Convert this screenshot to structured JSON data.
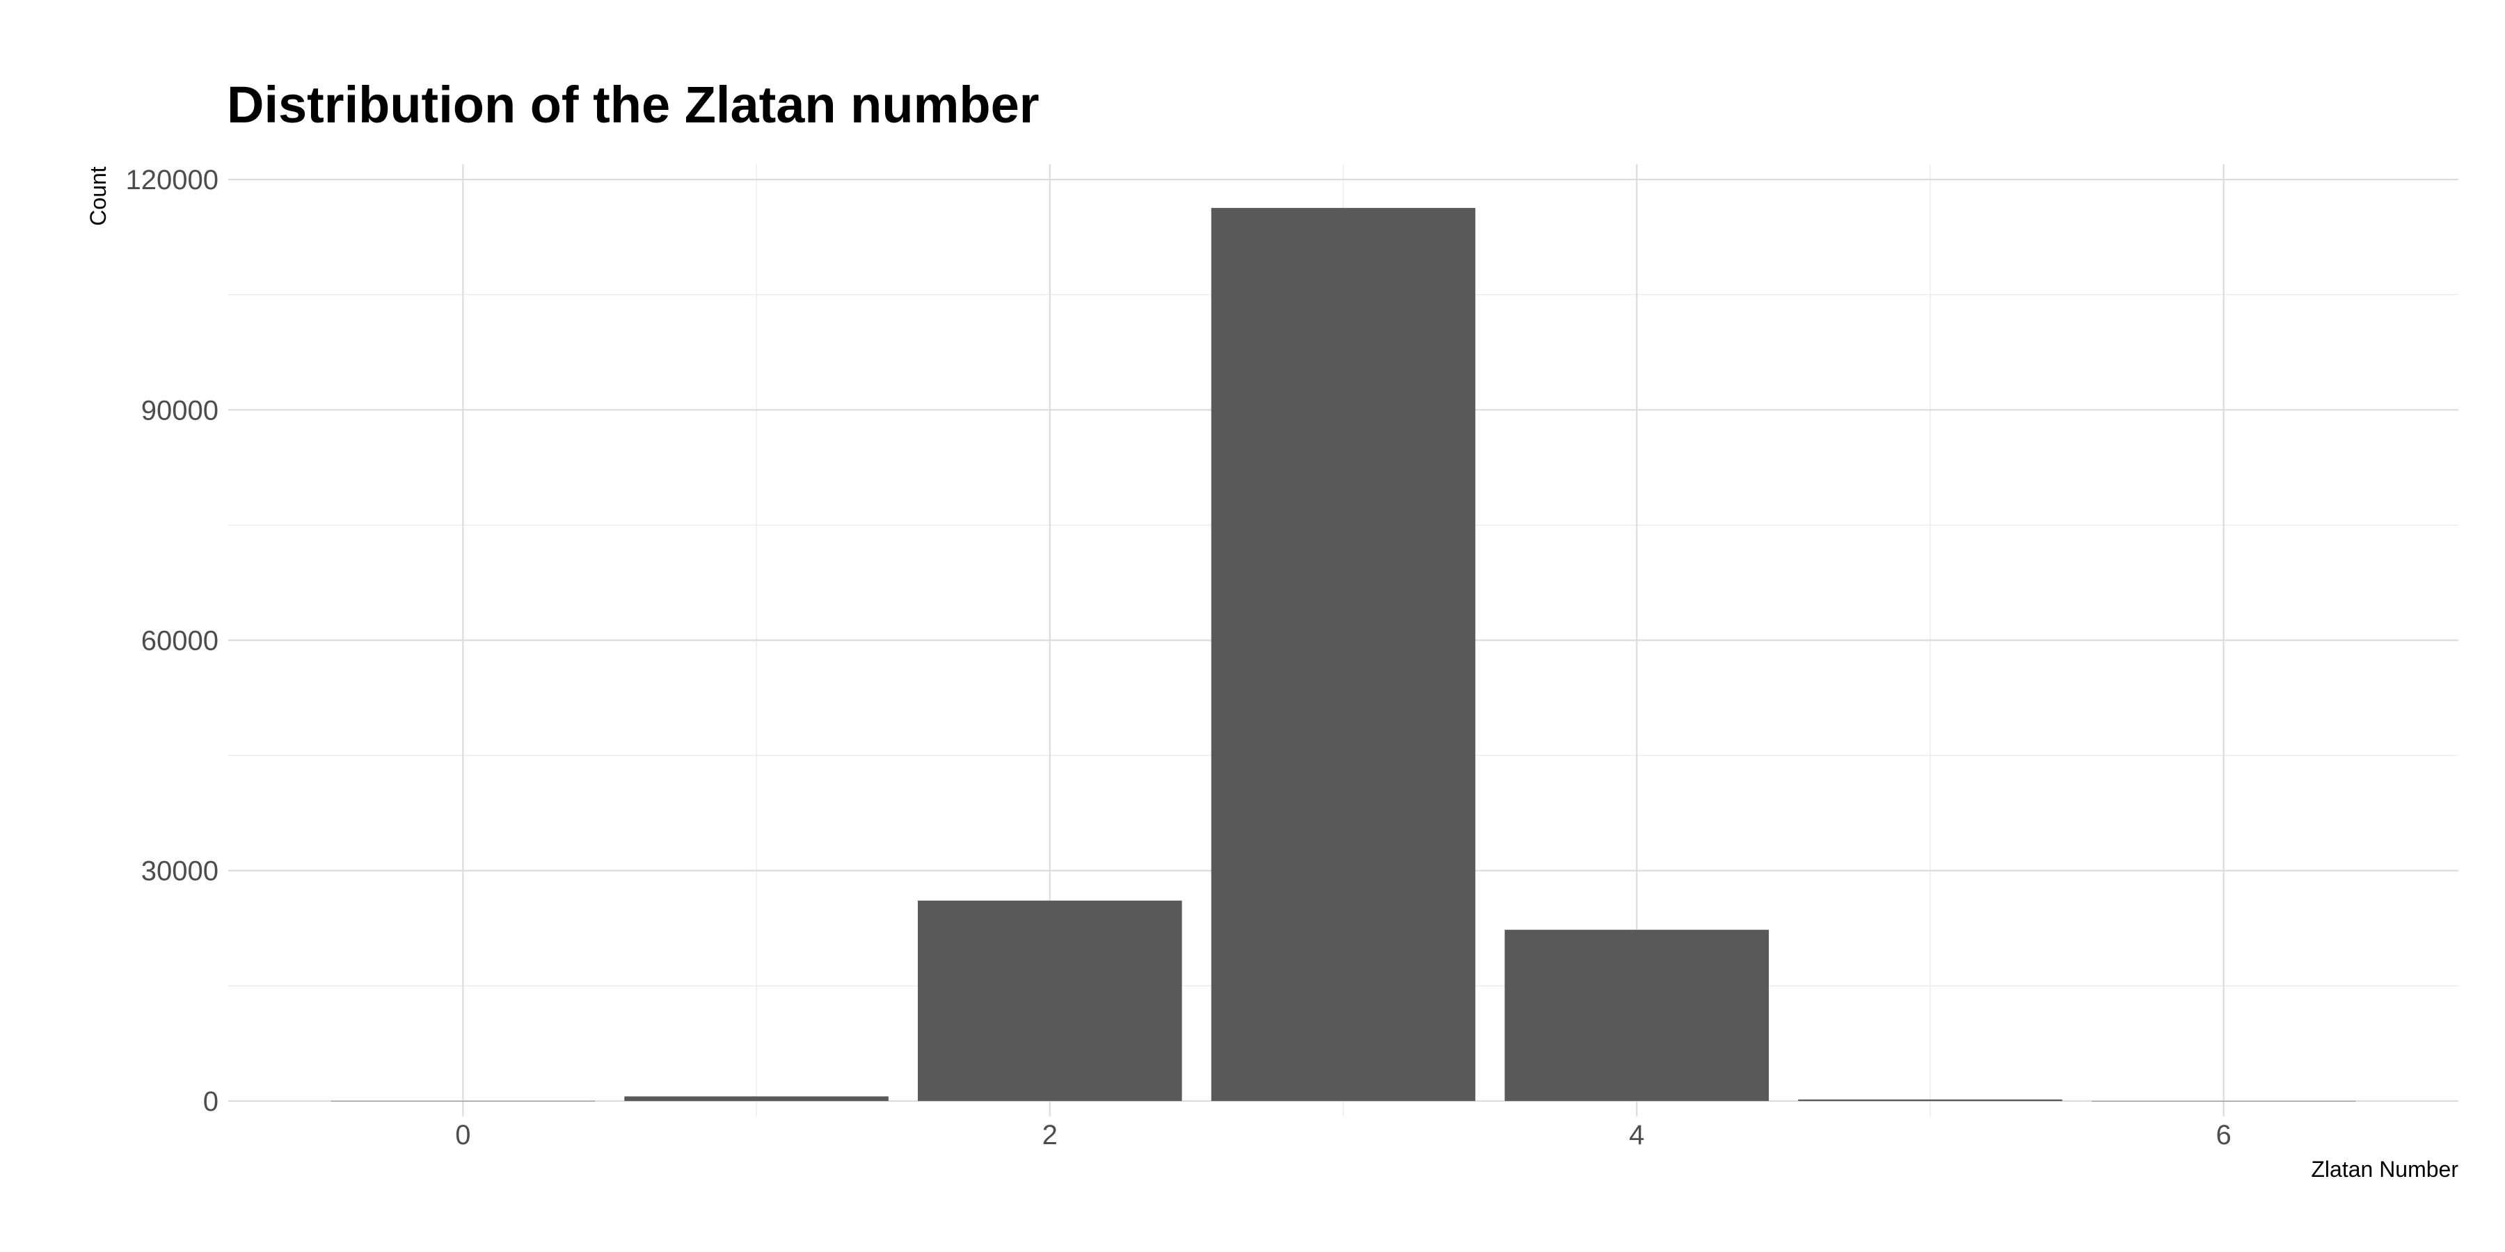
{
  "chart_data": {
    "type": "bar",
    "title": "Distribution of the Zlatan number",
    "xlabel": "Zlatan Number",
    "ylabel": "Count",
    "x": [
      0,
      1,
      2,
      3,
      4,
      5,
      6
    ],
    "values": [
      10,
      600,
      26100,
      116300,
      22300,
      200,
      5
    ],
    "xlim": [
      -0.8,
      6.8
    ],
    "ylim": [
      -2000,
      122000
    ],
    "xticks": [
      0,
      2,
      4,
      6
    ],
    "xtick_labels": [
      "0",
      "2",
      "4",
      "6"
    ],
    "yticks": [
      0,
      30000,
      60000,
      90000,
      120000
    ],
    "ytick_labels": [
      "0",
      "30000",
      "60000",
      "90000",
      "120000"
    ],
    "grid": true,
    "bar_color": "#595959",
    "theme": "minimal"
  }
}
